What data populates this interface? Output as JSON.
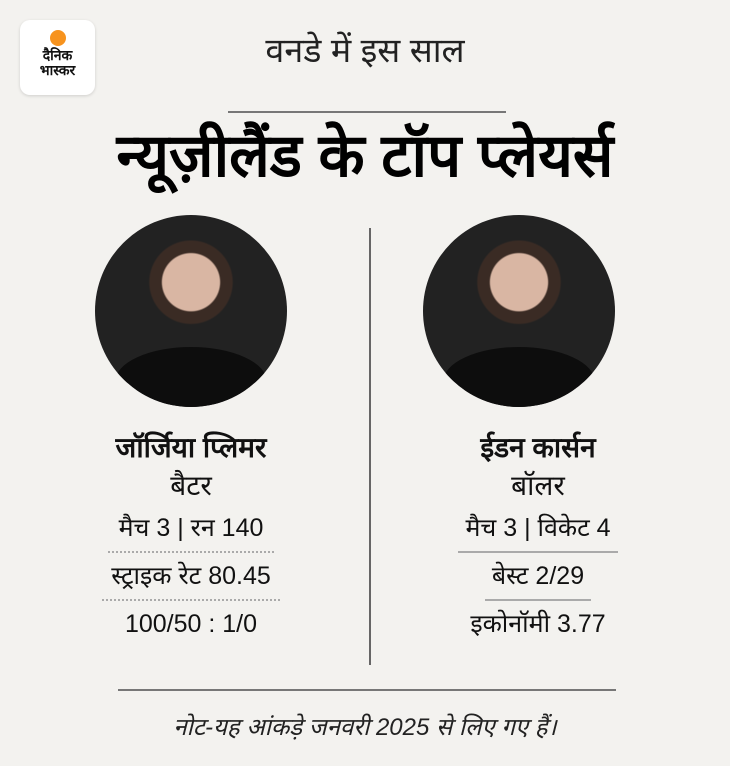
{
  "logo": {
    "line1": "दैनिक",
    "line2": "भास्कर",
    "sun_color": "#f7931e"
  },
  "header": {
    "subtitle": "वनडे में इस साल",
    "title": "न्यूज़ीलैंड के टॉप प्लेयर्स"
  },
  "players": [
    {
      "name": "जॉर्जिया प्लिमर",
      "role": "बैटर",
      "stats": [
        "मैच 3 | रन 140",
        "स्ट्राइक रेट 80.45",
        "100/50 : 1/0"
      ]
    },
    {
      "name": "ईडन कार्सन",
      "role": "बॉलर",
      "stats": [
        "मैच 3 | विकेट 4",
        "बेस्ट 2/29",
        "इकोनॉमी 3.77"
      ]
    }
  ],
  "footer": {
    "note": "नोट-यह आंकड़े जनवरी 2025 से लिए गए हैं।"
  }
}
